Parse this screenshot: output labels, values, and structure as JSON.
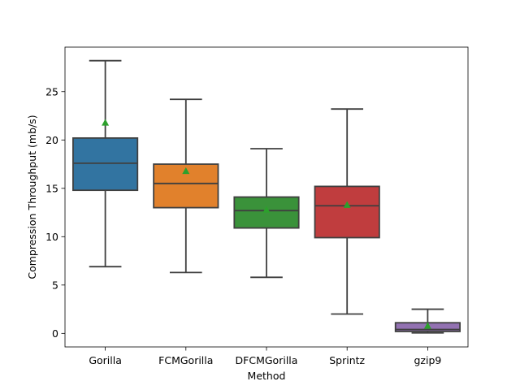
{
  "chart_data": {
    "type": "box",
    "title": "",
    "xlabel": "Method",
    "ylabel": "Compression Throughput (mb/s)",
    "ylim": [
      -1.4,
      29.6
    ],
    "yticks": [
      0,
      5,
      10,
      15,
      20,
      25
    ],
    "grid": false,
    "show_means": true,
    "mean_marker_color": "#2ca02c",
    "categories": [
      "Gorilla",
      "FCMGorilla",
      "DFCMGorilla",
      "Sprintz",
      "gzip9"
    ],
    "boxes": [
      {
        "name": "Gorilla",
        "color": "#3274a1",
        "whisker_low": 6.9,
        "q1": 14.8,
        "median": 17.6,
        "q3": 20.2,
        "whisker_high": 28.2,
        "mean": 21.8
      },
      {
        "name": "FCMGorilla",
        "color": "#e1812c",
        "whisker_low": 6.3,
        "q1": 13.0,
        "median": 15.5,
        "q3": 17.5,
        "whisker_high": 24.2,
        "mean": 16.8
      },
      {
        "name": "DFCMGorilla",
        "color": "#3a923a",
        "whisker_low": 5.8,
        "q1": 10.9,
        "median": 12.7,
        "q3": 14.1,
        "whisker_high": 19.1,
        "mean": 12.8
      },
      {
        "name": "Sprintz",
        "color": "#c03d3e",
        "whisker_low": 2.0,
        "q1": 9.9,
        "median": 13.2,
        "q3": 15.2,
        "whisker_high": 23.2,
        "mean": 13.3
      },
      {
        "name": "gzip9",
        "color": "#9372b2",
        "whisker_low": 0.05,
        "q1": 0.2,
        "median": 0.4,
        "q3": 1.1,
        "whisker_high": 2.5,
        "mean": 0.8
      }
    ]
  }
}
